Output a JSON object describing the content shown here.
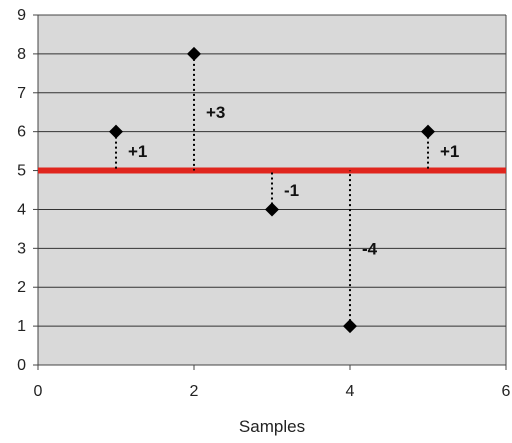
{
  "chart_data": {
    "type": "scatter",
    "title": "",
    "xlabel": "Samples",
    "ylabel": "",
    "xlim": [
      0,
      6
    ],
    "ylim": [
      0,
      9
    ],
    "x_ticks": [
      "0",
      "2",
      "4",
      "6"
    ],
    "y_ticks": [
      "0",
      "1",
      "2",
      "3",
      "4",
      "5",
      "6",
      "7",
      "8",
      "9"
    ],
    "grid": "horizontal",
    "background_color": "#d9d9d9",
    "mean_line": {
      "value": 5,
      "color": "#e0261e"
    },
    "series": [
      {
        "marker": "diamond",
        "color": "#000000",
        "points": [
          {
            "x": 1,
            "y": 6,
            "label": "+1"
          },
          {
            "x": 2,
            "y": 8,
            "label": "+3"
          },
          {
            "x": 3,
            "y": 4,
            "label": "-1"
          },
          {
            "x": 4,
            "y": 1,
            "label": "-4"
          },
          {
            "x": 5,
            "y": 6,
            "label": "+1"
          }
        ]
      }
    ]
  }
}
